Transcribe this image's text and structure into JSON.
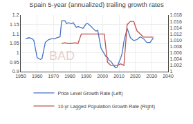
{
  "chart_data": {
    "type": "line",
    "title": "Spain 5-year (annualized) trailing growth rates",
    "annotations": [
      "BAD"
    ],
    "xlim": [
      1950,
      2040
    ],
    "xticks": [
      1950,
      1960,
      1970,
      1980,
      1990,
      2000,
      2010,
      2020,
      2030,
      2040
    ],
    "ylim": [
      0.9,
      1.2
    ],
    "yticks": [
      0.9,
      0.95,
      1,
      1.05,
      1.1,
      1.15,
      1.2
    ],
    "y2lim": [
      1.0,
      1.018
    ],
    "y2ticks": [
      1,
      1.002,
      1.004,
      1.006,
      1.008,
      {
        "value": 1.01,
        "label": "1.010"
      },
      1.012,
      1.014,
      1.016,
      1.018
    ],
    "grid": true,
    "legend": "bottom",
    "series": [
      {
        "name": "Price Level Growth Rate (Left)",
        "color": "#4472c4",
        "x": [
          1953,
          1955,
          1957,
          1958,
          1960,
          1962,
          1963,
          1965,
          1967,
          1969,
          1971,
          1972,
          1974,
          1975,
          1977,
          1978,
          1979,
          1981,
          1982,
          1984,
          1985,
          1987,
          1988,
          1990,
          1991,
          1993,
          1994,
          1996,
          1997,
          1999,
          2000,
          2001,
          2002,
          2003,
          2004,
          2005,
          2006,
          2007,
          2008,
          2009,
          2010,
          2011,
          2012,
          2013,
          2015,
          2017,
          2019,
          2021,
          2023,
          2025,
          2027,
          2029,
          2031
        ],
        "values": [
          1.075,
          1.08,
          1.075,
          1.065,
          0.975,
          0.965,
          0.97,
          1.055,
          1.07,
          1.075,
          1.075,
          1.08,
          1.085,
          1.17,
          1.17,
          1.155,
          1.16,
          1.155,
          1.16,
          1.135,
          1.14,
          1.135,
          1.13,
          1.155,
          1.155,
          1.14,
          1.13,
          1.115,
          1.12,
          1.025,
          1.01,
          1.0,
          0.98,
          0.975,
          0.96,
          0.955,
          0.94,
          0.93,
          0.92,
          0.925,
          0.95,
          0.97,
          1.0,
          1.06,
          1.13,
          1.08,
          1.065,
          1.07,
          1.085,
          1.075,
          1.055,
          1.055,
          1.08
        ]
      },
      {
        "name": "10-yr Lagged Population Growth Rate (Right)",
        "color": "#c0504d",
        "axis": "y2",
        "x": [
          1975,
          1977,
          1979,
          1981,
          1983,
          1985,
          1987,
          1989,
          1991,
          1993,
          1995,
          1997,
          1999,
          2001,
          2003,
          2005,
          2007,
          2009,
          2011,
          2013,
          2015,
          2017,
          2019,
          2021,
          2023,
          2025,
          2027,
          2029,
          2031
        ],
        "values": [
          1.009,
          1.0092,
          1.009,
          1.009,
          1.0092,
          1.009,
          1.012,
          1.012,
          1.012,
          1.012,
          1.012,
          1.012,
          1.012,
          1.012,
          1.003,
          1.002,
          1.002,
          1.002,
          1.0025,
          1.002,
          1.015,
          1.016,
          1.016,
          1.013,
          1.012,
          1.011,
          1.011,
          1.011,
          1.011
        ]
      }
    ]
  }
}
